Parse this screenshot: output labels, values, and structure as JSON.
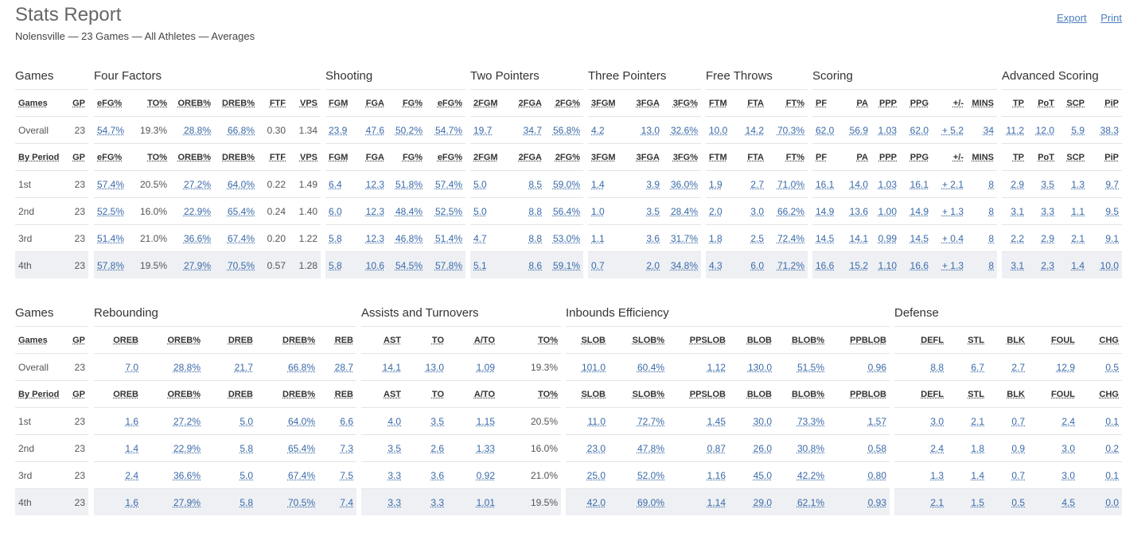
{
  "page": {
    "title": "Stats Report",
    "subtitle": "Nolensville — 23 Games — All Athletes — Averages",
    "export_label": "Export",
    "print_label": "Print"
  },
  "blocks": [
    {
      "sections": [
        {
          "title": "Games",
          "headers": [
            "Games",
            "GP"
          ],
          "overall": [
            "Overall",
            "23"
          ],
          "period_headers": [
            "By Period",
            "GP"
          ],
          "rows": [
            [
              "1st",
              "23"
            ],
            [
              "2nd",
              "23"
            ],
            [
              "3rd",
              "23"
            ],
            [
              "4th",
              "23"
            ]
          ]
        },
        {
          "title": "Four Factors",
          "headers": [
            "eFG%",
            "TO%",
            "OREB%",
            "DREB%",
            "FTF",
            "VPS"
          ],
          "overall": [
            "54.7%",
            "19.3%",
            "28.8%",
            "66.8%",
            "0.30",
            "1.34"
          ],
          "period_headers": [
            "eFG%",
            "TO%",
            "OREB%",
            "DREB%",
            "FTF",
            "VPS"
          ],
          "rows": [
            [
              "57.4%",
              "20.5%",
              "27.2%",
              "64.0%",
              "0.22",
              "1.49"
            ],
            [
              "52.5%",
              "16.0%",
              "22.9%",
              "65.4%",
              "0.24",
              "1.40"
            ],
            [
              "51.4%",
              "21.0%",
              "36.6%",
              "67.4%",
              "0.20",
              "1.22"
            ],
            [
              "57.8%",
              "19.5%",
              "27.9%",
              "70.5%",
              "0.57",
              "1.28"
            ]
          ]
        },
        {
          "title": "Shooting",
          "headers": [
            "FGM",
            "FGA",
            "FG%",
            "eFG%"
          ],
          "overall": [
            "23.9",
            "47.6",
            "50.2%",
            "54.7%"
          ],
          "period_headers": [
            "FGM",
            "FGA",
            "FG%",
            "eFG%"
          ],
          "rows": [
            [
              "6.4",
              "12.3",
              "51.8%",
              "57.4%"
            ],
            [
              "6.0",
              "12.3",
              "48.4%",
              "52.5%"
            ],
            [
              "5.8",
              "12.3",
              "46.8%",
              "51.4%"
            ],
            [
              "5.8",
              "10.6",
              "54.5%",
              "57.8%"
            ]
          ]
        },
        {
          "title": "Two Pointers",
          "headers": [
            "2FGM",
            "2FGA",
            "2FG%"
          ],
          "overall": [
            "19.7",
            "34.7",
            "56.8%"
          ],
          "period_headers": [
            "2FGM",
            "2FGA",
            "2FG%"
          ],
          "rows": [
            [
              "5.0",
              "8.5",
              "59.0%"
            ],
            [
              "5.0",
              "8.8",
              "56.4%"
            ],
            [
              "4.7",
              "8.8",
              "53.0%"
            ],
            [
              "5.1",
              "8.6",
              "59.1%"
            ]
          ]
        },
        {
          "title": "Three Pointers",
          "headers": [
            "3FGM",
            "3FGA",
            "3FG%"
          ],
          "overall": [
            "4.2",
            "13.0",
            "32.6%"
          ],
          "period_headers": [
            "3FGM",
            "3FGA",
            "3FG%"
          ],
          "rows": [
            [
              "1.4",
              "3.9",
              "36.0%"
            ],
            [
              "1.0",
              "3.5",
              "28.4%"
            ],
            [
              "1.1",
              "3.6",
              "31.7%"
            ],
            [
              "0.7",
              "2.0",
              "34.8%"
            ]
          ]
        },
        {
          "title": "Free Throws",
          "headers": [
            "FTM",
            "FTA",
            "FT%"
          ],
          "overall": [
            "10.0",
            "14.2",
            "70.3%"
          ],
          "period_headers": [
            "FTM",
            "FTA",
            "FT%"
          ],
          "rows": [
            [
              "1.9",
              "2.7",
              "71.0%"
            ],
            [
              "2.0",
              "3.0",
              "66.2%"
            ],
            [
              "1.8",
              "2.5",
              "72.4%"
            ],
            [
              "4.3",
              "6.0",
              "71.2%"
            ]
          ]
        },
        {
          "title": "Scoring",
          "headers": [
            "PF",
            "PA",
            "PPP",
            "PPG",
            "+/-",
            "MINS"
          ],
          "overall": [
            "62.0",
            "56.9",
            "1.03",
            "62.0",
            "+ 5.2",
            "34"
          ],
          "period_headers": [
            "PF",
            "PA",
            "PPP",
            "PPG",
            "+/-",
            "MINS"
          ],
          "rows": [
            [
              "16.1",
              "14.0",
              "1.03",
              "16.1",
              "+ 2.1",
              "8"
            ],
            [
              "14.9",
              "13.6",
              "1.00",
              "14.9",
              "+ 1.3",
              "8"
            ],
            [
              "14.5",
              "14.1",
              "0.99",
              "14.5",
              "+ 0.4",
              "8"
            ],
            [
              "16.6",
              "15.2",
              "1.10",
              "16.6",
              "+ 1.3",
              "8"
            ]
          ]
        },
        {
          "title": "Advanced Scoring",
          "headers": [
            "TP",
            "PoT",
            "SCP",
            "PiP"
          ],
          "overall": [
            "11.2",
            "12.0",
            "5.9",
            "38.3"
          ],
          "period_headers": [
            "TP",
            "PoT",
            "SCP",
            "PiP"
          ],
          "rows": [
            [
              "2.9",
              "3.5",
              "1.3",
              "9.7"
            ],
            [
              "3.1",
              "3.3",
              "1.1",
              "9.5"
            ],
            [
              "2.2",
              "2.9",
              "2.1",
              "9.1"
            ],
            [
              "3.1",
              "2.3",
              "1.4",
              "10.0"
            ]
          ]
        }
      ]
    },
    {
      "sections": [
        {
          "title": "Games",
          "headers": [
            "Games",
            "GP"
          ],
          "overall": [
            "Overall",
            "23"
          ],
          "period_headers": [
            "By Period",
            "GP"
          ],
          "rows": [
            [
              "1st",
              "23"
            ],
            [
              "2nd",
              "23"
            ],
            [
              "3rd",
              "23"
            ],
            [
              "4th",
              "23"
            ]
          ]
        },
        {
          "title": "Rebounding",
          "headers": [
            "OREB",
            "OREB%",
            "DREB",
            "DREB%",
            "REB"
          ],
          "overall": [
            "7.0",
            "28.8%",
            "21.7",
            "66.8%",
            "28.7"
          ],
          "period_headers": [
            "OREB",
            "OREB%",
            "DREB",
            "DREB%",
            "REB"
          ],
          "rows": [
            [
              "1.6",
              "27.2%",
              "5.0",
              "64.0%",
              "6.6"
            ],
            [
              "1.4",
              "22.9%",
              "5.8",
              "65.4%",
              "7.3"
            ],
            [
              "2.4",
              "36.6%",
              "5.0",
              "67.4%",
              "7.5"
            ],
            [
              "1.6",
              "27.9%",
              "5.8",
              "70.5%",
              "7.4"
            ]
          ]
        },
        {
          "title": "Assists and Turnovers",
          "headers": [
            "AST",
            "TO",
            "A/TO",
            "TO%"
          ],
          "overall": [
            "14.1",
            "13.0",
            "1.09",
            "19.3%"
          ],
          "period_headers": [
            "AST",
            "TO",
            "A/TO",
            "TO%"
          ],
          "rows": [
            [
              "4.0",
              "3.5",
              "1.15",
              "20.5%"
            ],
            [
              "3.5",
              "2.6",
              "1.33",
              "16.0%"
            ],
            [
              "3.3",
              "3.6",
              "0.92",
              "21.0%"
            ],
            [
              "3.3",
              "3.3",
              "1.01",
              "19.5%"
            ]
          ]
        },
        {
          "title": "Inbounds Efficiency",
          "headers": [
            "SLOB",
            "SLOB%",
            "PPSLOB",
            "BLOB",
            "BLOB%",
            "PPBLOB"
          ],
          "overall": [
            "101.0",
            "60.4%",
            "1.12",
            "130.0",
            "51.5%",
            "0.96"
          ],
          "period_headers": [
            "SLOB",
            "SLOB%",
            "PPSLOB",
            "BLOB",
            "BLOB%",
            "PPBLOB"
          ],
          "rows": [
            [
              "11.0",
              "72.7%",
              "1.45",
              "30.0",
              "73.3%",
              "1.57"
            ],
            [
              "23.0",
              "47.8%",
              "0.87",
              "26.0",
              "30.8%",
              "0.58"
            ],
            [
              "25.0",
              "52.0%",
              "1.16",
              "45.0",
              "42.2%",
              "0.80"
            ],
            [
              "42.0",
              "69.0%",
              "1.14",
              "29.0",
              "62.1%",
              "0.93"
            ]
          ]
        },
        {
          "title": "Defense",
          "headers": [
            "DEFL",
            "STL",
            "BLK",
            "FOUL",
            "CHG"
          ],
          "overall": [
            "8.8",
            "6.7",
            "2.7",
            "12.9",
            "0.5"
          ],
          "period_headers": [
            "DEFL",
            "STL",
            "BLK",
            "FOUL",
            "CHG"
          ],
          "rows": [
            [
              "3.0",
              "2.1",
              "0.7",
              "2.4",
              "0.1"
            ],
            [
              "2.4",
              "1.8",
              "0.9",
              "3.0",
              "0.2"
            ],
            [
              "1.3",
              "1.4",
              "0.7",
              "3.0",
              "0.1"
            ],
            [
              "2.1",
              "1.5",
              "0.5",
              "4.5",
              "0.0"
            ]
          ]
        }
      ]
    }
  ]
}
